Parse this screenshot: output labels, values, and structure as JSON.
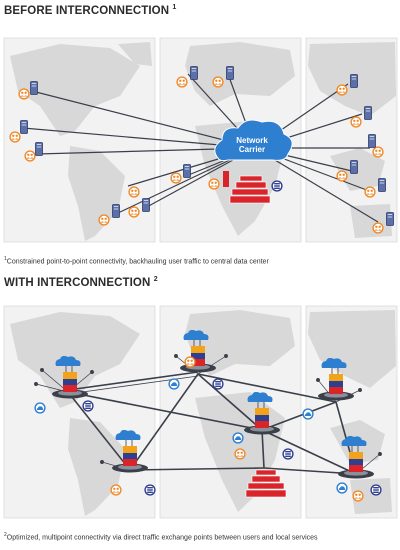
{
  "before": {
    "title": "BEFORE INTERCONNECTION",
    "title_sup": "1",
    "hub_label_line1": "Network",
    "hub_label_line2": "Carrier",
    "footnote_marker": "1",
    "footnote": "Constrained point-to-point connectivity, backhauling user traffic to central data center"
  },
  "after": {
    "title": "WITH INTERCONNECTION",
    "title_sup": "2",
    "footnote_marker": "2",
    "footnote": "Optimized, multipoint connectivity via direct traffic exchange points between users and local services"
  },
  "colors": {
    "map_land": "#d8d8d8",
    "map_water": "#f2f2f2",
    "cloud_blue": "#2f7fd0",
    "user_orange": "#f08a2a",
    "datacenter_red": "#d9252a",
    "exchange_orange": "#f2a21b",
    "link_dark": "#3a3f4a"
  },
  "icons": [
    "user-group-icon",
    "server-device-icon",
    "network-carrier-cloud-icon",
    "data-center-icon",
    "storage-icon",
    "interconnection-hub-icon"
  ]
}
